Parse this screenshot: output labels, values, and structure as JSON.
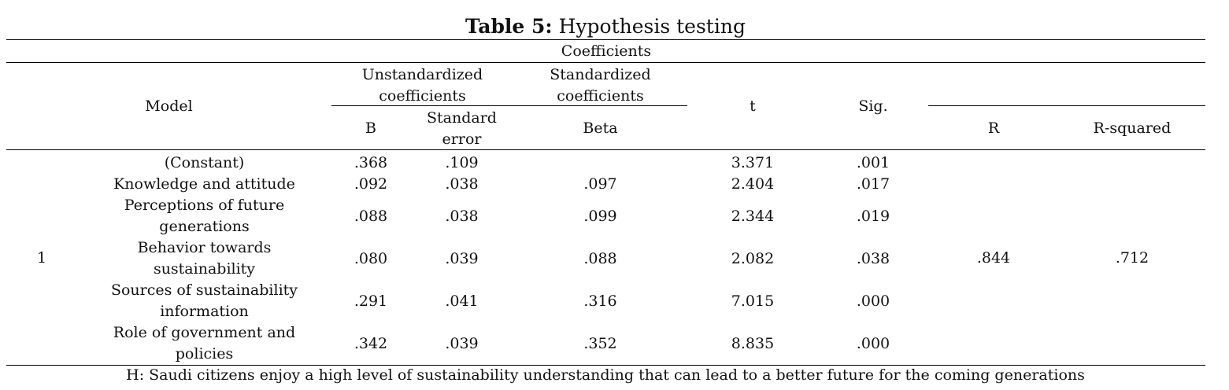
{
  "caption": {
    "label": "Table 5:",
    "title": "Hypothesis testing"
  },
  "header": {
    "group": "Coefficients",
    "model": "Model",
    "unstd_line1": "Unstandardized",
    "unstd_line2": "coefficients",
    "std_line1": "Standardized",
    "std_line2": "coefficients",
    "t": "t",
    "sig": "Sig.",
    "b": "B",
    "se_line1": "Standard",
    "se_line2": "error",
    "beta": "Beta",
    "r": "R",
    "r_squared": "R-squared"
  },
  "model_number": "1",
  "r_value": ".844",
  "r_squared_value": ".712",
  "rows": [
    {
      "lines": [
        "(Constant)"
      ],
      "b": ".368",
      "se": ".109",
      "beta": "",
      "t": "3.371",
      "sig": ".001"
    },
    {
      "lines": [
        "Knowledge and attitude"
      ],
      "b": ".092",
      "se": ".038",
      "beta": ".097",
      "t": "2.404",
      "sig": ".017"
    },
    {
      "lines": [
        "Perceptions of future",
        "generations"
      ],
      "b": ".088",
      "se": ".038",
      "beta": ".099",
      "t": "2.344",
      "sig": ".019"
    },
    {
      "lines": [
        "Behavior towards",
        "sustainability"
      ],
      "b": ".080",
      "se": ".039",
      "beta": ".088",
      "t": "2.082",
      "sig": ".038"
    },
    {
      "lines": [
        "Sources of sustainability",
        "information"
      ],
      "b": ".291",
      "se": ".041",
      "beta": ".316",
      "t": "7.015",
      "sig": ".000"
    },
    {
      "lines": [
        "Role of government and",
        "policies"
      ],
      "b": ".342",
      "se": ".039",
      "beta": ".352",
      "t": "8.835",
      "sig": ".000"
    }
  ],
  "note": "H: Saudi citizens enjoy a high level of sustainability understanding that can lead to a better future for the coming generations"
}
